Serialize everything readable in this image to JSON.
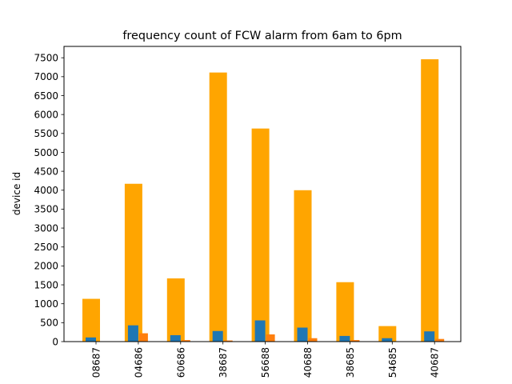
{
  "chart_data": {
    "type": "bar",
    "title": "frequency count of FCW alarm from 6am to 6pm",
    "xlabel": "",
    "ylabel": "device id",
    "categories": [
      "08687",
      "04686",
      "60686",
      "38687",
      "56688",
      "40688",
      "38685",
      "54685",
      "40687"
    ],
    "series": [
      {
        "values": [
          1130,
          4170,
          1670,
          7110,
          5630,
          4000,
          1570,
          410,
          7460
        ],
        "color": "#ffa500"
      },
      {
        "values": [
          110,
          430,
          170,
          280,
          560,
          370,
          150,
          90,
          270
        ],
        "color": "#1f77b4"
      },
      {
        "values": [
          0,
          220,
          40,
          30,
          190,
          90,
          40,
          0,
          70
        ],
        "color": "#ff7f0e"
      }
    ],
    "ylim": [
      0,
      7800
    ],
    "yticks": [
      0,
      500,
      1000,
      1500,
      2000,
      2500,
      3000,
      3500,
      4000,
      4500,
      5000,
      5500,
      6000,
      6500,
      7000,
      7500
    ],
    "grid": false,
    "legend": "none"
  }
}
